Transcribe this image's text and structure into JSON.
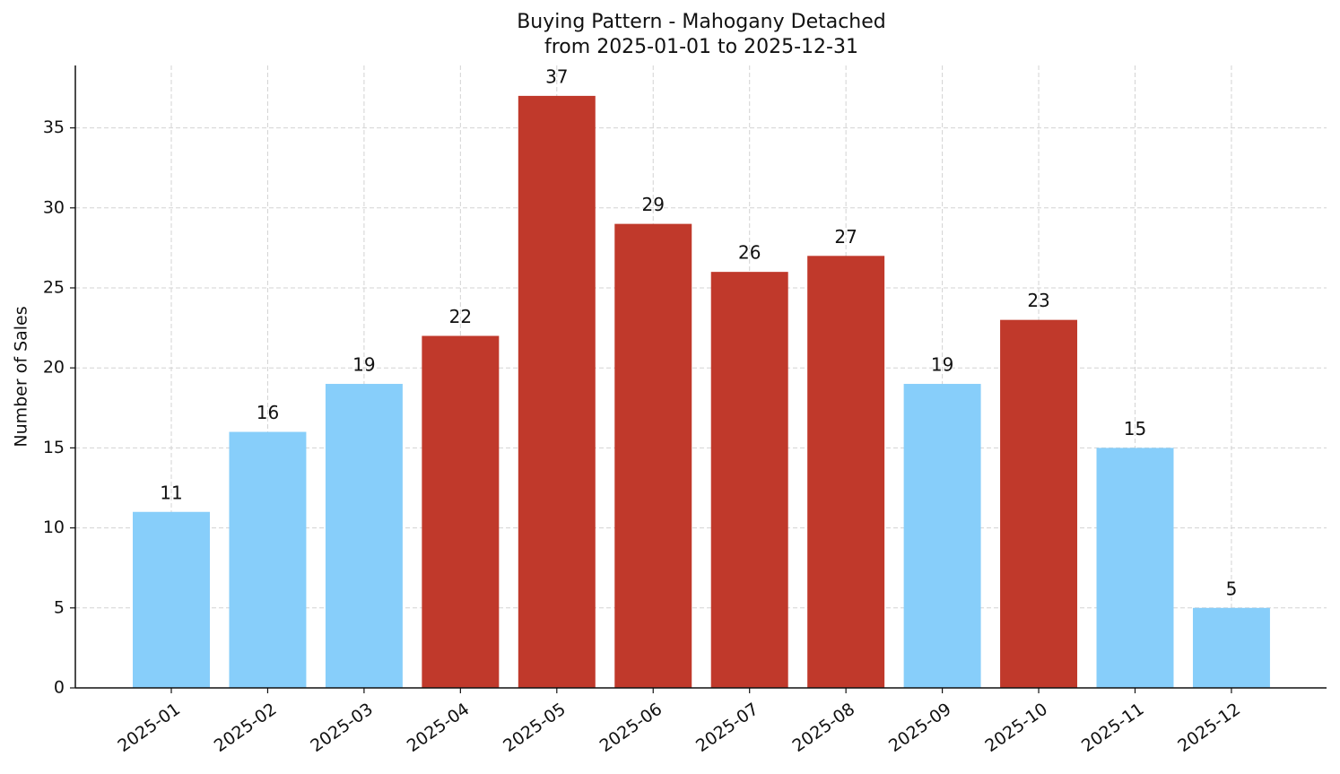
{
  "chart_data": {
    "type": "bar",
    "title": "Buying Pattern - Mahogany Detached",
    "subtitle": "from 2025-01-01 to 2025-12-31",
    "y_label": "Number of Sales",
    "categories": [
      "2025-01",
      "2025-02",
      "2025-03",
      "2025-04",
      "2025-05",
      "2025-06",
      "2025-07",
      "2025-08",
      "2025-09",
      "2025-10",
      "2025-11",
      "2025-12"
    ],
    "values": [
      11,
      16,
      19,
      22,
      37,
      29,
      26,
      27,
      19,
      23,
      15,
      5
    ],
    "colors": [
      "#87cefa",
      "#87cefa",
      "#87cefa",
      "#c0392b",
      "#c0392b",
      "#c0392b",
      "#c0392b",
      "#c0392b",
      "#87cefa",
      "#c0392b",
      "#87cefa",
      "#87cefa"
    ],
    "ylim": [
      0,
      38.9
    ],
    "yticks": [
      0,
      5,
      10,
      15,
      20,
      25,
      30,
      35
    ],
    "grid": true
  }
}
